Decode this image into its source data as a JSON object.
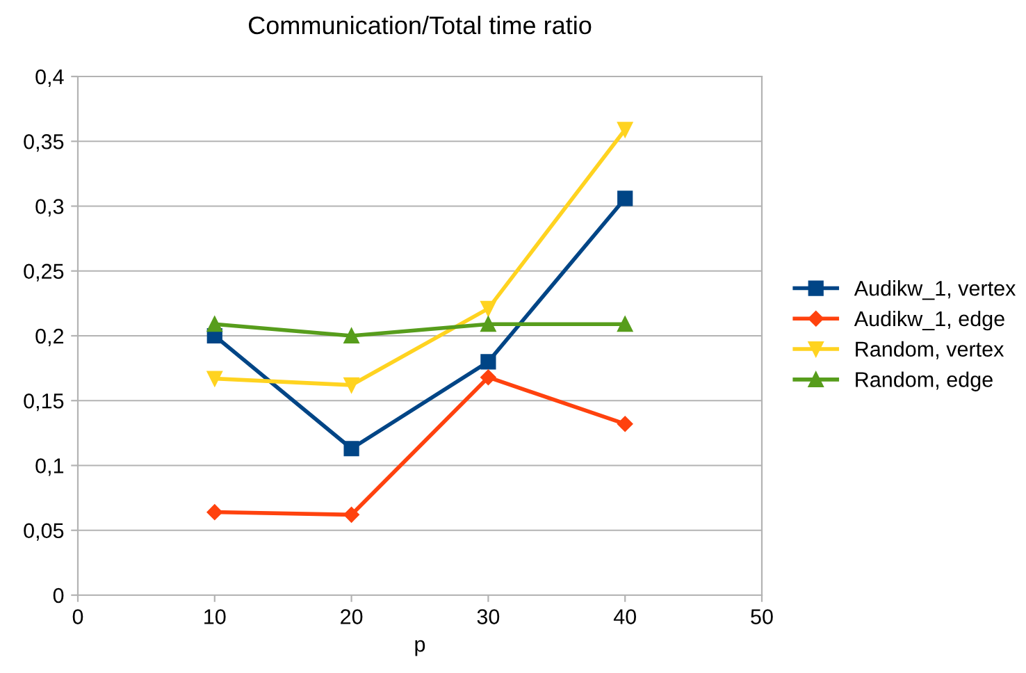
{
  "chart_data": {
    "type": "line",
    "title": "Communication/Total time ratio",
    "xlabel": "p",
    "x": [
      10,
      20,
      30,
      40
    ],
    "series": [
      {
        "name": "Audikw_1, vertex",
        "color": "#004586",
        "marker": "square",
        "values": [
          0.2,
          0.113,
          0.18,
          0.306
        ]
      },
      {
        "name": "Audikw_1, edge",
        "color": "#ff420e",
        "marker": "diamond",
        "values": [
          0.064,
          0.062,
          0.168,
          0.132
        ]
      },
      {
        "name": "Random, vertex",
        "color": "#ffd320",
        "marker": "triangle",
        "values": [
          0.167,
          0.162,
          0.221,
          0.359
        ]
      },
      {
        "name": "Random, edge",
        "color": "#579d1c",
        "marker": "triangle",
        "values": [
          0.209,
          0.2,
          0.209,
          0.209
        ]
      }
    ],
    "xlim": [
      0,
      50
    ],
    "xticks": [
      0,
      10,
      20,
      30,
      40,
      50
    ],
    "ylim": [
      0,
      0.4
    ],
    "yticks": [
      0,
      {
        "value": 0.05,
        "label": "0,05"
      },
      {
        "value": 0.1,
        "label": "0,1"
      },
      {
        "value": 0.15,
        "label": "0,15"
      },
      {
        "value": 0.2,
        "label": "0,2"
      },
      {
        "value": 0.25,
        "label": "0,25"
      },
      {
        "value": 0.3,
        "label": "0,3"
      },
      {
        "value": 0.35,
        "label": "0,35"
      },
      {
        "value": 0.4,
        "label": "0,4"
      }
    ],
    "grid": "y",
    "legend": "right",
    "line_style": "solid"
  }
}
